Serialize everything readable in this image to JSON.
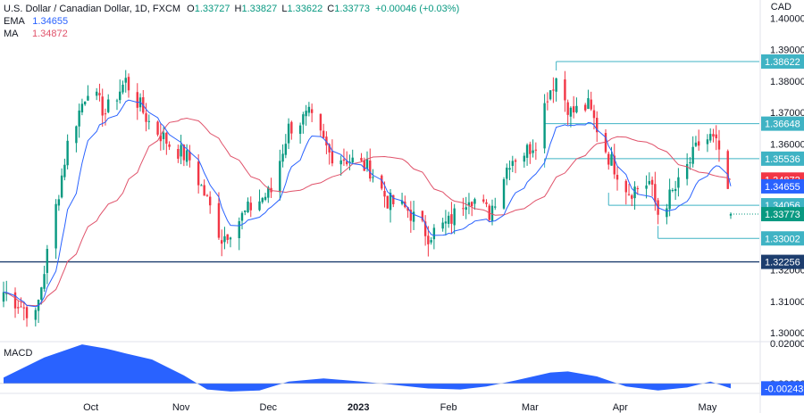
{
  "header": {
    "symbol_line": "U.S. Dollar / Canadian Dollar, 1D, FXCM",
    "o_label": "O",
    "o_value": "1.33727",
    "h_label": "H",
    "h_value": "1.33827",
    "l_label": "L",
    "l_value": "1.33622",
    "c_label": "C",
    "c_value": "1.33773",
    "change": "+0.00046 (+0.03%)",
    "ema_label": "EMA",
    "ema_value": "1.34655",
    "ma_label": "MA",
    "ma_value": "1.34872",
    "macd_label": "MACD",
    "currency": "CAD"
  },
  "colors": {
    "up": "#089981",
    "down": "#f23645",
    "ema": "#2962ff",
    "ma": "#e0526a",
    "level_line": "#3fb3c4",
    "support": "#1c3d6e",
    "macd_fill": "#2962ff"
  },
  "chart_data": [
    {
      "type": "candlestick",
      "title": "U.S. Dollar / Canadian Dollar, 1D, FXCM",
      "y_unit": "CAD",
      "ylim": [
        1.2975,
        1.4035
      ],
      "y_ticks": [
        "1.40000",
        "1.39000",
        "1.38000",
        "1.37000",
        "1.36000",
        "1.35000",
        "1.34000",
        "1.33000",
        "1.32000",
        "1.31000",
        "1.30000"
      ],
      "x_ticks": [
        "Oct",
        "Nov",
        "Dec",
        "2023",
        "Feb",
        "Mar",
        "Apr",
        "May"
      ],
      "date_range": [
        "2022-09-01",
        "2023-05-09"
      ],
      "price_levels": [
        {
          "value": 1.38622,
          "label": "1.38622",
          "from": "2023-03-10",
          "kind": "resistance"
        },
        {
          "value": 1.36648,
          "label": "1.36648",
          "from": "2023-03-06",
          "kind": "resistance"
        },
        {
          "value": 1.35536,
          "label": "1.35536",
          "from": "2023-03-06",
          "kind": "resistance"
        },
        {
          "value": 1.34056,
          "label": "1.34056",
          "from": "2023-03-28",
          "kind": "support"
        },
        {
          "value": 1.33002,
          "label": "1.33002",
          "from": "2023-04-14",
          "kind": "support"
        },
        {
          "value": 1.32256,
          "label": "1.32256",
          "from": "2022-09-01",
          "kind": "major-support"
        }
      ],
      "last_price_tags": [
        {
          "label": "1.34872",
          "value": 1.34872,
          "series": "MA"
        },
        {
          "label": "1.34655",
          "value": 1.34655,
          "series": "EMA"
        },
        {
          "label": "1.33773",
          "value": 1.33773,
          "series": "Close"
        }
      ],
      "close_path": [
        [
          "2022-09-01",
          1.313
        ],
        [
          "2022-09-12",
          1.305
        ],
        [
          "2022-09-23",
          1.36
        ],
        [
          "2022-09-30",
          1.378
        ],
        [
          "2022-10-06",
          1.37
        ],
        [
          "2022-10-13",
          1.38
        ],
        [
          "2022-10-21",
          1.367
        ],
        [
          "2022-10-28",
          1.36
        ],
        [
          "2022-11-04",
          1.355
        ],
        [
          "2022-11-10",
          1.342
        ],
        [
          "2022-11-15",
          1.33
        ],
        [
          "2022-11-25",
          1.34
        ],
        [
          "2022-12-02",
          1.345
        ],
        [
          "2022-12-08",
          1.365
        ],
        [
          "2022-12-15",
          1.369
        ],
        [
          "2022-12-22",
          1.357
        ],
        [
          "2022-12-29",
          1.355
        ],
        [
          "2023-01-05",
          1.352
        ],
        [
          "2023-01-11",
          1.342
        ],
        [
          "2023-01-18",
          1.339
        ],
        [
          "2023-01-25",
          1.331
        ],
        [
          "2023-02-01",
          1.335
        ],
        [
          "2023-02-08",
          1.344
        ],
        [
          "2023-02-15",
          1.338
        ],
        [
          "2023-02-22",
          1.355
        ],
        [
          "2023-02-28",
          1.358
        ],
        [
          "2023-03-03",
          1.361
        ],
        [
          "2023-03-07",
          1.376
        ],
        [
          "2023-03-10",
          1.381
        ],
        [
          "2023-03-15",
          1.37
        ],
        [
          "2023-03-21",
          1.372
        ],
        [
          "2023-03-28",
          1.356
        ],
        [
          "2023-04-04",
          1.345
        ],
        [
          "2023-04-11",
          1.348
        ],
        [
          "2023-04-14",
          1.338
        ],
        [
          "2023-04-21",
          1.347
        ],
        [
          "2023-04-28",
          1.36
        ],
        [
          "2023-05-02",
          1.362
        ],
        [
          "2023-05-05",
          1.358
        ],
        [
          "2023-05-09",
          1.33773
        ]
      ],
      "series": [
        {
          "name": "EMA",
          "last": 1.34655
        },
        {
          "name": "MA",
          "last": 1.34872
        }
      ]
    },
    {
      "type": "area",
      "title": "MACD",
      "ylim": [
        -0.0045,
        0.02
      ],
      "y_ticks": [
        "0.02000",
        "0.00000"
      ],
      "last_label": "-0.00243",
      "last_value": -0.00243,
      "points": [
        [
          "2022-09-01",
          0.003
        ],
        [
          "2022-09-15",
          0.013
        ],
        [
          "2022-09-28",
          0.0195
        ],
        [
          "2022-10-06",
          0.0175
        ],
        [
          "2022-10-13",
          0.015
        ],
        [
          "2022-10-22",
          0.012
        ],
        [
          "2022-11-02",
          0.004
        ],
        [
          "2022-11-10",
          -0.003
        ],
        [
          "2022-11-18",
          -0.004
        ],
        [
          "2022-11-28",
          -0.0035
        ],
        [
          "2022-12-08",
          0.001
        ],
        [
          "2022-12-20",
          0.0025
        ],
        [
          "2023-01-02",
          0.001
        ],
        [
          "2023-01-12",
          -0.0005
        ],
        [
          "2023-01-25",
          -0.0025
        ],
        [
          "2023-02-05",
          -0.003
        ],
        [
          "2023-02-14",
          -0.0015
        ],
        [
          "2023-02-24",
          0.0015
        ],
        [
          "2023-03-08",
          0.0055
        ],
        [
          "2023-03-14",
          0.006
        ],
        [
          "2023-03-24",
          0.0035
        ],
        [
          "2023-04-03",
          -0.0015
        ],
        [
          "2023-04-14",
          -0.0035
        ],
        [
          "2023-04-24",
          -0.002
        ],
        [
          "2023-05-02",
          0.001
        ],
        [
          "2023-05-09",
          -0.00243
        ]
      ]
    }
  ]
}
